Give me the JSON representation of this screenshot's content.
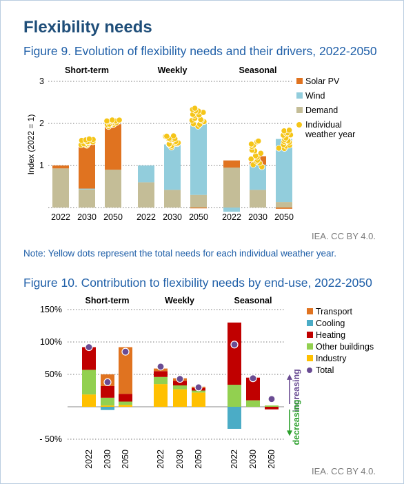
{
  "page": {
    "title": "Flexibility needs",
    "fig9_title": "Figure 9. Evolution of flexibility needs and their drivers, 2022-2050",
    "fig10_title": "Figure 10. Contribution to flexibility needs by end-use, 2022-2050",
    "note": "Note: Yellow dots represent the total needs for each individual weather year.",
    "credit1": "IEA. CC BY 4.0.",
    "credit2": "IEA. CC BY 4.0."
  },
  "chart_data": [
    {
      "type": "bar",
      "stacked": true,
      "ylabel": "Index (2022 = 1)",
      "ylim": [
        0,
        3
      ],
      "yticks": [
        "1",
        "2",
        "3"
      ],
      "gridlines": "dotted",
      "legend_position": "right",
      "groups": [
        "Short-term",
        "Weekly",
        "Seasonal"
      ],
      "categories": [
        "2022",
        "2030",
        "2050"
      ],
      "colors": {
        "Solar PV": "#e07320",
        "Wind": "#92cddc",
        "Demand": "#c4bd97",
        "Individual weather year": "#f5c518"
      },
      "legend": [
        {
          "label": "Solar PV",
          "marker": "square"
        },
        {
          "label": "Wind",
          "marker": "square"
        },
        {
          "label": "Demand",
          "marker": "square"
        },
        {
          "label": "Individual\nweather year",
          "marker": "dot"
        }
      ],
      "series": [
        {
          "name": "Demand",
          "values": [
            [
              0.93,
              0.43,
              0.9
            ],
            [
              0.6,
              0.42,
              0.3
            ],
            [
              0.95,
              0.42,
              0.13
            ]
          ]
        },
        {
          "name": "Wind",
          "values": [
            [
              0,
              0.02,
              0
            ],
            [
              0.4,
              1.08,
              1.72
            ],
            [
              -0.1,
              0.6,
              1.5
            ]
          ]
        },
        {
          "name": "Solar PV",
          "values": [
            [
              0.07,
              1.05,
              1.08
            ],
            [
              0,
              0,
              -0.02
            ],
            [
              0.17,
              0.2,
              -0.03
            ]
          ]
        }
      ],
      "weather_year_ranges": [
        [
          null,
          [
            1.48,
            1.62
          ],
          [
            1.95,
            2.08
          ]
        ],
        [
          null,
          [
            1.45,
            1.72
          ],
          [
            1.95,
            2.35
          ]
        ],
        [
          null,
          [
            0.95,
            1.6
          ],
          [
            1.4,
            1.85
          ]
        ]
      ]
    },
    {
      "type": "bar",
      "stacked": true,
      "yticks": [
        "150%",
        "100%",
        "50%",
        "- 50%"
      ],
      "ylim": [
        -50,
        150
      ],
      "gridlines": "dotted",
      "legend_position": "right",
      "groups": [
        "Short-term",
        "Weekly",
        "Seasonal"
      ],
      "categories": [
        "2022",
        "2030",
        "2050"
      ],
      "colors": {
        "Transport": "#e07320",
        "Cooling": "#4bacc6",
        "Heating": "#c00000",
        "Other buildings": "#92d050",
        "Industry": "#ffc000",
        "Total": "#6a4c93"
      },
      "legend": [
        {
          "label": "Transport",
          "marker": "square"
        },
        {
          "label": "Cooling",
          "marker": "square"
        },
        {
          "label": "Heating",
          "marker": "square"
        },
        {
          "label": "Other buildings",
          "marker": "square"
        },
        {
          "label": "Industry",
          "marker": "square"
        },
        {
          "label": "Total",
          "marker": "dot"
        }
      ],
      "series": [
        {
          "name": "Industry",
          "values": [
            [
              19,
              2,
              3
            ],
            [
              35,
              27,
              22
            ],
            [
              0,
              0,
              0
            ]
          ]
        },
        {
          "name": "Other buildings",
          "values": [
            [
              38,
              12,
              5
            ],
            [
              11,
              6,
              3
            ],
            [
              34,
              10,
              2
            ]
          ]
        },
        {
          "name": "Heating",
          "values": [
            [
              35,
              18,
              12
            ],
            [
              9,
              7,
              4
            ],
            [
              96,
              35,
              -4
            ]
          ]
        },
        {
          "name": "Cooling",
          "values": [
            [
              0,
              -5,
              0
            ],
            [
              0,
              0,
              0
            ],
            [
              -34,
              0,
              0
            ]
          ]
        },
        {
          "name": "Transport",
          "values": [
            [
              0,
              18,
              72
            ],
            [
              4,
              4,
              2
            ],
            [
              0,
              0,
              0
            ]
          ]
        },
        {
          "name": "Total",
          "values": [
            [
              92,
              38,
              85
            ],
            [
              62,
              43,
              30
            ],
            [
              96,
              44,
              12
            ]
          ]
        }
      ],
      "annotations": {
        "increasing": "increasing",
        "decreasing": "decreasing"
      }
    }
  ]
}
